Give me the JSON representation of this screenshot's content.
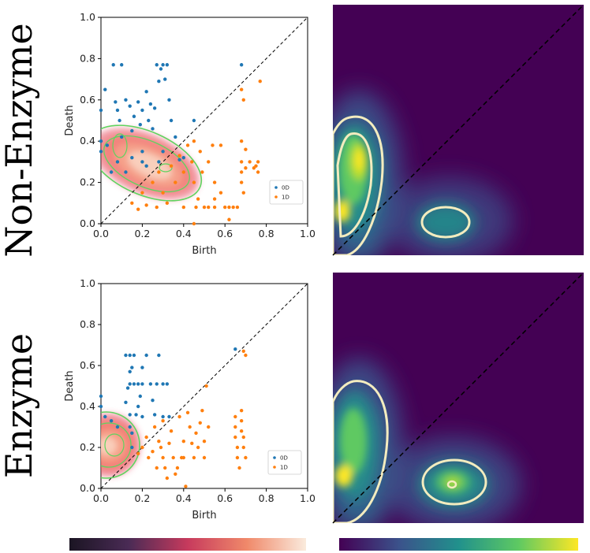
{
  "row_labels": [
    "Non-Enzyme",
    "Enzyme"
  ],
  "colors": {
    "h0": "#1f77b4",
    "h1": "#ff7f0e",
    "contour_green": "#5fd35f",
    "viridis_contour": "#f3ecbf"
  },
  "colorbars": {
    "left": "magma-like (dark to light)",
    "right": "viridis (purple to yellow)"
  },
  "chart_data": [
    {
      "type": "scatter",
      "panel": "Non-Enzyme persistence diagram",
      "xlabel": "Birth",
      "ylabel": "Death",
      "xlim": [
        0,
        1
      ],
      "ylim": [
        0,
        1
      ],
      "xticks": [
        "0.0",
        "0.2",
        "0.4",
        "0.6",
        "0.8",
        "1.0"
      ],
      "yticks": [
        "0.0",
        "0.2",
        "0.4",
        "0.6",
        "0.8",
        "1.0"
      ],
      "diagonal": true,
      "legend_position": "lower-right",
      "series": [
        {
          "name": "0D",
          "points": [
            [
              0.02,
              0.65
            ],
            [
              0.0,
              0.55
            ],
            [
              0.0,
              0.4
            ],
            [
              0.0,
              0.35
            ],
            [
              0.03,
              0.38
            ],
            [
              0.06,
              0.77
            ],
            [
              0.1,
              0.77
            ],
            [
              0.07,
              0.59
            ],
            [
              0.08,
              0.55
            ],
            [
              0.09,
              0.5
            ],
            [
              0.1,
              0.42
            ],
            [
              0.12,
              0.6
            ],
            [
              0.14,
              0.57
            ],
            [
              0.16,
              0.52
            ],
            [
              0.15,
              0.45
            ],
            [
              0.18,
              0.59
            ],
            [
              0.2,
              0.55
            ],
            [
              0.19,
              0.48
            ],
            [
              0.2,
              0.35
            ],
            [
              0.2,
              0.3
            ],
            [
              0.22,
              0.64
            ],
            [
              0.24,
              0.58
            ],
            [
              0.23,
              0.5
            ],
            [
              0.26,
              0.56
            ],
            [
              0.25,
              0.46
            ],
            [
              0.27,
              0.77
            ],
            [
              0.28,
              0.69
            ],
            [
              0.29,
              0.75
            ],
            [
              0.3,
              0.77
            ],
            [
              0.31,
              0.7
            ],
            [
              0.32,
              0.77
            ],
            [
              0.33,
              0.6
            ],
            [
              0.34,
              0.5
            ],
            [
              0.36,
              0.42
            ],
            [
              0.38,
              0.31
            ],
            [
              0.4,
              0.32
            ],
            [
              0.45,
              0.5
            ],
            [
              0.68,
              0.77
            ],
            [
              0.05,
              0.25
            ],
            [
              0.08,
              0.3
            ],
            [
              0.12,
              0.25
            ],
            [
              0.15,
              0.32
            ],
            [
              0.22,
              0.28
            ],
            [
              0.28,
              0.3
            ],
            [
              0.3,
              0.35
            ]
          ]
        },
        {
          "name": "1D",
          "points": [
            [
              0.15,
              0.1
            ],
            [
              0.18,
              0.07
            ],
            [
              0.2,
              0.15
            ],
            [
              0.22,
              0.09
            ],
            [
              0.25,
              0.2
            ],
            [
              0.27,
              0.08
            ],
            [
              0.28,
              0.25
            ],
            [
              0.3,
              0.15
            ],
            [
              0.32,
              0.1
            ],
            [
              0.34,
              0.28
            ],
            [
              0.36,
              0.2
            ],
            [
              0.38,
              0.33
            ],
            [
              0.4,
              0.25
            ],
            [
              0.4,
              0.08
            ],
            [
              0.42,
              0.38
            ],
            [
              0.44,
              0.3
            ],
            [
              0.45,
              0.4
            ],
            [
              0.45,
              0.2
            ],
            [
              0.46,
              0.08
            ],
            [
              0.47,
              0.12
            ],
            [
              0.48,
              0.35
            ],
            [
              0.49,
              0.25
            ],
            [
              0.5,
              0.08
            ],
            [
              0.52,
              0.08
            ],
            [
              0.52,
              0.3
            ],
            [
              0.54,
              0.38
            ],
            [
              0.55,
              0.08
            ],
            [
              0.55,
              0.2
            ],
            [
              0.58,
              0.38
            ],
            [
              0.58,
              0.15
            ],
            [
              0.6,
              0.08
            ],
            [
              0.62,
              0.08
            ],
            [
              0.64,
              0.08
            ],
            [
              0.66,
              0.08
            ],
            [
              0.68,
              0.4
            ],
            [
              0.68,
              0.3
            ],
            [
              0.68,
              0.25
            ],
            [
              0.68,
              0.2
            ],
            [
              0.69,
              0.15
            ],
            [
              0.7,
              0.36
            ],
            [
              0.7,
              0.27
            ],
            [
              0.72,
              0.3
            ],
            [
              0.74,
              0.27
            ],
            [
              0.75,
              0.28
            ],
            [
              0.76,
              0.3
            ],
            [
              0.76,
              0.25
            ],
            [
              0.77,
              0.69
            ],
            [
              0.68,
              0.65
            ],
            [
              0.69,
              0.6
            ],
            [
              0.45,
              0.0
            ],
            [
              0.62,
              0.02
            ],
            [
              0.55,
              0.12
            ]
          ]
        }
      ]
    },
    {
      "type": "heatmap",
      "panel": "Non-Enzyme persistence image",
      "colormap": "viridis",
      "diagonal": true
    },
    {
      "type": "scatter",
      "panel": "Enzyme persistence diagram",
      "xlabel": "Birth",
      "ylabel": "Death",
      "xlim": [
        0,
        1
      ],
      "ylim": [
        0,
        1
      ],
      "xticks": [
        "0.0",
        "0.2",
        "0.4",
        "0.6",
        "0.8",
        "1.0"
      ],
      "yticks": [
        "0.0",
        "0.2",
        "0.4",
        "0.6",
        "0.8",
        "1.0"
      ],
      "diagonal": true,
      "legend_position": "lower-right",
      "series": [
        {
          "name": "0D",
          "points": [
            [
              0.0,
              0.45
            ],
            [
              0.0,
              0.4
            ],
            [
              0.02,
              0.35
            ],
            [
              0.05,
              0.33
            ],
            [
              0.08,
              0.3
            ],
            [
              0.12,
              0.42
            ],
            [
              0.13,
              0.49
            ],
            [
              0.14,
              0.36
            ],
            [
              0.14,
              0.3
            ],
            [
              0.15,
              0.27
            ],
            [
              0.15,
              0.2
            ],
            [
              0.12,
              0.65
            ],
            [
              0.14,
              0.65
            ],
            [
              0.16,
              0.65
            ],
            [
              0.15,
              0.59
            ],
            [
              0.14,
              0.57
            ],
            [
              0.14,
              0.51
            ],
            [
              0.16,
              0.51
            ],
            [
              0.18,
              0.51
            ],
            [
              0.17,
              0.36
            ],
            [
              0.18,
              0.4
            ],
            [
              0.19,
              0.45
            ],
            [
              0.2,
              0.59
            ],
            [
              0.2,
              0.51
            ],
            [
              0.2,
              0.35
            ],
            [
              0.22,
              0.65
            ],
            [
              0.24,
              0.51
            ],
            [
              0.25,
              0.43
            ],
            [
              0.26,
              0.36
            ],
            [
              0.27,
              0.51
            ],
            [
              0.28,
              0.65
            ],
            [
              0.3,
              0.51
            ],
            [
              0.3,
              0.35
            ],
            [
              0.32,
              0.51
            ],
            [
              0.33,
              0.35
            ],
            [
              0.65,
              0.68
            ]
          ]
        },
        {
          "name": "1D",
          "points": [
            [
              0.18,
              0.17
            ],
            [
              0.2,
              0.2
            ],
            [
              0.22,
              0.25
            ],
            [
              0.23,
              0.15
            ],
            [
              0.25,
              0.18
            ],
            [
              0.26,
              0.3
            ],
            [
              0.27,
              0.1
            ],
            [
              0.28,
              0.23
            ],
            [
              0.29,
              0.2
            ],
            [
              0.3,
              0.33
            ],
            [
              0.3,
              0.15
            ],
            [
              0.31,
              0.1
            ],
            [
              0.32,
              0.05
            ],
            [
              0.33,
              0.22
            ],
            [
              0.34,
              0.28
            ],
            [
              0.35,
              0.15
            ],
            [
              0.36,
              0.07
            ],
            [
              0.37,
              0.1
            ],
            [
              0.38,
              0.35
            ],
            [
              0.39,
              0.15
            ],
            [
              0.4,
              0.23
            ],
            [
              0.4,
              0.15
            ],
            [
              0.41,
              0.01
            ],
            [
              0.42,
              0.37
            ],
            [
              0.43,
              0.3
            ],
            [
              0.44,
              0.22
            ],
            [
              0.45,
              0.15
            ],
            [
              0.46,
              0.27
            ],
            [
              0.47,
              0.2
            ],
            [
              0.48,
              0.32
            ],
            [
              0.49,
              0.38
            ],
            [
              0.5,
              0.23
            ],
            [
              0.5,
              0.15
            ],
            [
              0.51,
              0.5
            ],
            [
              0.52,
              0.3
            ],
            [
              0.65,
              0.35
            ],
            [
              0.65,
              0.3
            ],
            [
              0.65,
              0.25
            ],
            [
              0.66,
              0.2
            ],
            [
              0.66,
              0.15
            ],
            [
              0.67,
              0.1
            ],
            [
              0.68,
              0.38
            ],
            [
              0.68,
              0.33
            ],
            [
              0.68,
              0.28
            ],
            [
              0.69,
              0.25
            ],
            [
              0.69,
              0.2
            ],
            [
              0.7,
              0.15
            ],
            [
              0.7,
              0.65
            ],
            [
              0.69,
              0.67
            ]
          ]
        }
      ]
    },
    {
      "type": "heatmap",
      "panel": "Enzyme persistence image",
      "colormap": "viridis",
      "diagonal": true
    }
  ]
}
